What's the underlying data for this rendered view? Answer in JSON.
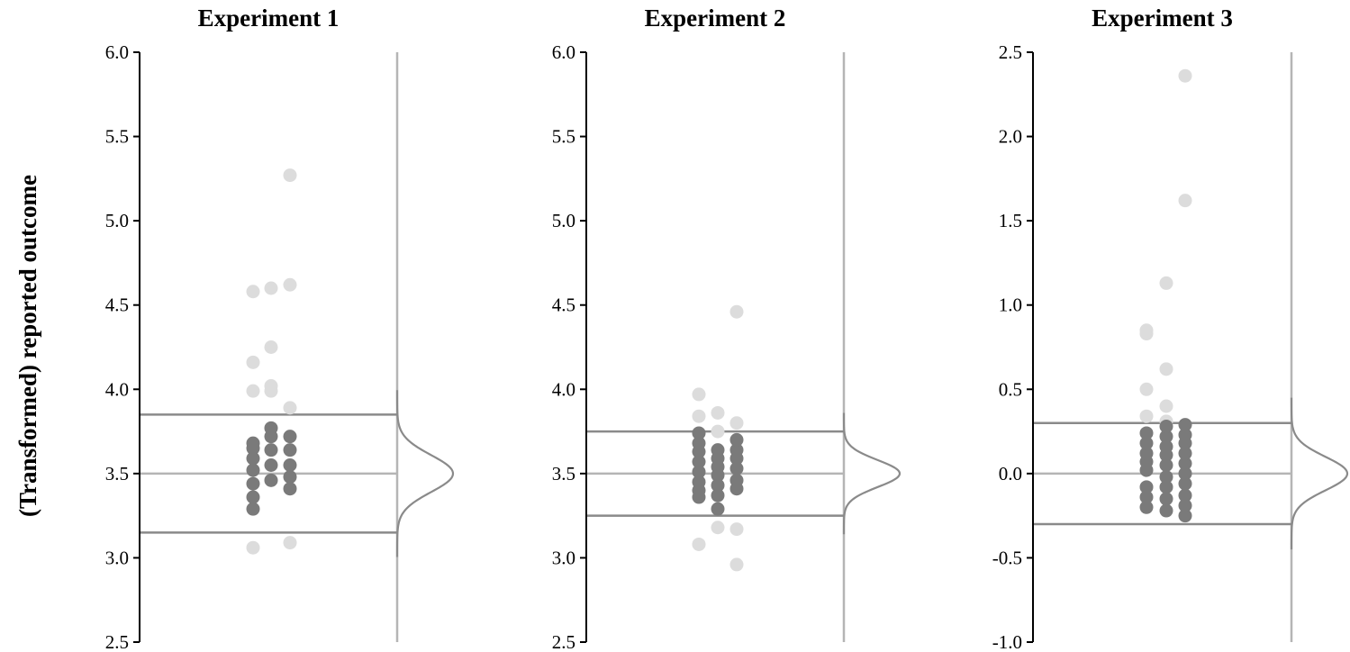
{
  "figure": {
    "ylabel": "(Transformed) reported outcome"
  },
  "chart_data": [
    {
      "type": "scatter",
      "title": "Experiment 1",
      "ylim": [
        2.5,
        6.0
      ],
      "yticks": [
        "2.5",
        "3.0",
        "3.5",
        "4.0",
        "4.5",
        "5.0",
        "5.5",
        "6.0"
      ],
      "center_line": 3.5,
      "band": [
        3.15,
        3.85
      ],
      "density_sd": 0.11,
      "colors": {
        "inside": "#7a7a7a",
        "outside": "#dcdcdc",
        "band_line": "#8a8a8a",
        "center_line": "#b5b5b5",
        "density": "#8a8a8a"
      },
      "columns": [
        {
          "inside": [
            3.29,
            3.36,
            3.44,
            3.52,
            3.59,
            3.65,
            3.68
          ],
          "outside": [
            3.06,
            3.99,
            4.16,
            4.58
          ]
        },
        {
          "inside": [
            3.46,
            3.55,
            3.64,
            3.72,
            3.77
          ],
          "outside": [
            3.99,
            4.02,
            4.25,
            4.6
          ]
        },
        {
          "inside": [
            3.41,
            3.48,
            3.55,
            3.64,
            3.72
          ],
          "outside": [
            3.09,
            3.89,
            4.62,
            5.27
          ]
        }
      ]
    },
    {
      "type": "scatter",
      "title": "Experiment 2",
      "ylim": [
        2.5,
        6.0
      ],
      "yticks": [
        "2.5",
        "3.0",
        "3.5",
        "4.0",
        "4.5",
        "5.0",
        "5.5",
        "6.0"
      ],
      "center_line": 3.5,
      "band": [
        3.25,
        3.75
      ],
      "density_sd": 0.08,
      "colors": {
        "inside": "#7a7a7a",
        "outside": "#dcdcdc",
        "band_line": "#8a8a8a",
        "center_line": "#b5b5b5",
        "density": "#8a8a8a"
      },
      "columns": [
        {
          "inside": [
            3.36,
            3.4,
            3.45,
            3.51,
            3.57,
            3.63,
            3.68,
            3.74
          ],
          "outside": [
            3.08,
            3.84,
            3.97
          ]
        },
        {
          "inside": [
            3.29,
            3.37,
            3.43,
            3.49,
            3.54,
            3.59,
            3.64
          ],
          "outside": [
            3.18,
            3.75,
            3.86
          ]
        },
        {
          "inside": [
            3.41,
            3.46,
            3.53,
            3.59,
            3.64,
            3.7
          ],
          "outside": [
            2.96,
            3.17,
            3.8,
            4.46
          ]
        }
      ]
    },
    {
      "type": "scatter",
      "title": "Experiment 3",
      "ylim": [
        -1.0,
        2.5
      ],
      "yticks": [
        "-1.0",
        "-0.5",
        "0.0",
        "0.5",
        "1.0",
        "1.5",
        "2.0",
        "2.5"
      ],
      "center_line": 0.0,
      "band": [
        -0.3,
        0.3
      ],
      "density_sd": 0.1,
      "colors": {
        "inside": "#7a7a7a",
        "outside": "#dcdcdc",
        "band_line": "#8a8a8a",
        "center_line": "#b5b5b5",
        "density": "#8a8a8a"
      },
      "columns": [
        {
          "inside": [
            -0.2,
            -0.14,
            -0.08,
            0.02,
            0.07,
            0.12,
            0.18,
            0.24
          ],
          "outside": [
            0.34,
            0.5,
            0.83,
            0.85
          ]
        },
        {
          "inside": [
            -0.22,
            -0.15,
            -0.08,
            -0.02,
            0.05,
            0.11,
            0.16,
            0.22,
            0.28
          ],
          "outside": [
            0.31,
            0.4,
            0.62,
            1.13
          ]
        },
        {
          "inside": [
            -0.25,
            -0.19,
            -0.13,
            -0.06,
            0.0,
            0.06,
            0.12,
            0.18,
            0.23,
            0.29
          ],
          "outside": [
            1.62,
            2.36
          ]
        }
      ]
    }
  ]
}
